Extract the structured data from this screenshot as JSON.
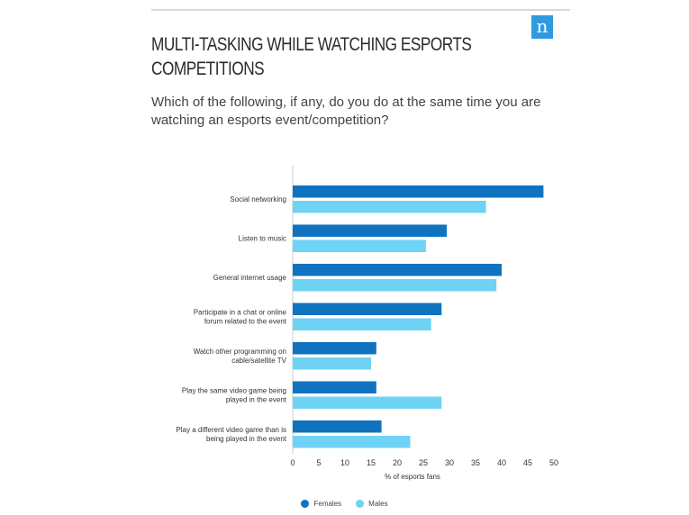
{
  "header": {
    "title": "MULTI-TASKING WHILE WATCHING ESPORTS COMPETITIONS",
    "subtitle": "Which of the following, if any, do you do at the same time you are watching an esports event/competition?",
    "logo_letter": "n",
    "logo_color": "#2f9ae0"
  },
  "chart_data": {
    "type": "bar",
    "orientation": "horizontal",
    "categories": [
      [
        "Social networking"
      ],
      [
        "Listen to music"
      ],
      [
        "General internet usage"
      ],
      [
        "Participate in a chat or online",
        "forum related to the event"
      ],
      [
        "Watch other programming on",
        "cable/satellite TV"
      ],
      [
        "Play the same video game being",
        "played in the event"
      ],
      [
        "Play a different video game than is",
        "being played in the event"
      ]
    ],
    "series": [
      {
        "name": "Females",
        "color": "#0f73c0",
        "values": [
          48,
          29.5,
          40,
          28.5,
          16,
          16,
          17
        ]
      },
      {
        "name": "Males",
        "color": "#6fd3f5",
        "values": [
          37,
          25.5,
          39,
          26.5,
          15,
          28.5,
          22.5
        ]
      }
    ],
    "xlabel": "% of esports fans",
    "xlim": [
      0,
      50
    ],
    "xticks": [
      0,
      5,
      10,
      15,
      20,
      25,
      30,
      35,
      40,
      45,
      50
    ],
    "grid": false,
    "legend_position": "bottom"
  }
}
